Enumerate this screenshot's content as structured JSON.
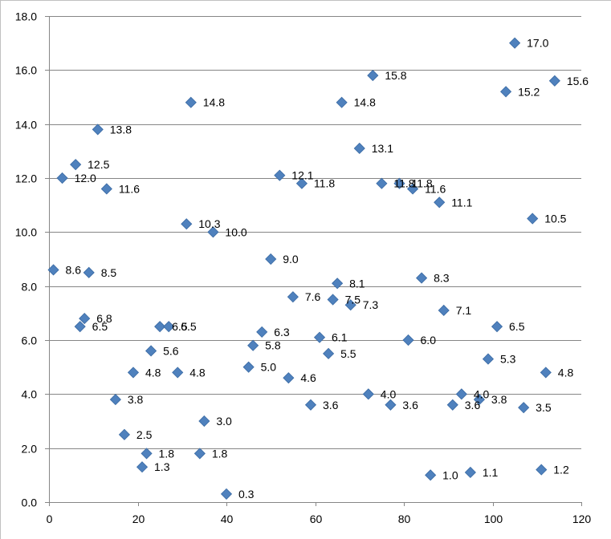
{
  "chart_data": {
    "type": "scatter",
    "title": "",
    "xlabel": "",
    "ylabel": "",
    "xlim": [
      0,
      120
    ],
    "ylim": [
      0,
      18
    ],
    "x_ticks": [
      "0",
      "20",
      "40",
      "60",
      "80",
      "100",
      "120"
    ],
    "y_ticks": [
      "0.0",
      "2.0",
      "4.0",
      "6.0",
      "8.0",
      "10.0",
      "12.0",
      "14.0",
      "16.0",
      "18.0"
    ],
    "grid": "horizontal",
    "legend": "none",
    "marker": "diamond",
    "color": "#4f81bd",
    "points": [
      {
        "x": 1,
        "y": 8.6,
        "label": "8.6"
      },
      {
        "x": 3,
        "y": 12.0,
        "label": "12.0"
      },
      {
        "x": 6,
        "y": 12.5,
        "label": "12.5"
      },
      {
        "x": 7,
        "y": 6.5,
        "label": "6.5"
      },
      {
        "x": 8,
        "y": 6.8,
        "label": "6.8"
      },
      {
        "x": 9,
        "y": 8.5,
        "label": "8.5"
      },
      {
        "x": 11,
        "y": 13.8,
        "label": "13.8"
      },
      {
        "x": 13,
        "y": 11.6,
        "label": "11.6"
      },
      {
        "x": 15,
        "y": 3.8,
        "label": "3.8"
      },
      {
        "x": 17,
        "y": 2.5,
        "label": "2.5"
      },
      {
        "x": 19,
        "y": 4.8,
        "label": "4.8"
      },
      {
        "x": 21,
        "y": 1.3,
        "label": "1.3"
      },
      {
        "x": 22,
        "y": 1.8,
        "label": "1.8"
      },
      {
        "x": 23,
        "y": 5.6,
        "label": "5.6"
      },
      {
        "x": 25,
        "y": 6.5,
        "label": "6.5"
      },
      {
        "x": 27,
        "y": 6.5,
        "label": "6.5"
      },
      {
        "x": 29,
        "y": 4.8,
        "label": "4.8"
      },
      {
        "x": 31,
        "y": 10.3,
        "label": "10.3"
      },
      {
        "x": 32,
        "y": 14.8,
        "label": "14.8"
      },
      {
        "x": 34,
        "y": 1.8,
        "label": "1.8"
      },
      {
        "x": 35,
        "y": 3.0,
        "label": "3.0"
      },
      {
        "x": 37,
        "y": 10.0,
        "label": "10.0"
      },
      {
        "x": 40,
        "y": 0.3,
        "label": "0.3"
      },
      {
        "x": 45,
        "y": 5.0,
        "label": "5.0"
      },
      {
        "x": 46,
        "y": 5.8,
        "label": "5.8"
      },
      {
        "x": 48,
        "y": 6.3,
        "label": "6.3"
      },
      {
        "x": 50,
        "y": 9.0,
        "label": "9.0"
      },
      {
        "x": 52,
        "y": 12.1,
        "label": "12.1"
      },
      {
        "x": 54,
        "y": 4.6,
        "label": "4.6"
      },
      {
        "x": 55,
        "y": 7.6,
        "label": "7.6"
      },
      {
        "x": 57,
        "y": 11.8,
        "label": "11.8"
      },
      {
        "x": 59,
        "y": 3.6,
        "label": "3.6"
      },
      {
        "x": 61,
        "y": 6.1,
        "label": "6.1"
      },
      {
        "x": 63,
        "y": 5.5,
        "label": "5.5"
      },
      {
        "x": 64,
        "y": 7.5,
        "label": "7.5"
      },
      {
        "x": 65,
        "y": 8.1,
        "label": "8.1"
      },
      {
        "x": 66,
        "y": 14.8,
        "label": "14.8"
      },
      {
        "x": 68,
        "y": 7.3,
        "label": "7.3"
      },
      {
        "x": 70,
        "y": 13.1,
        "label": "13.1"
      },
      {
        "x": 72,
        "y": 4.0,
        "label": "4.0"
      },
      {
        "x": 73,
        "y": 15.8,
        "label": "15.8"
      },
      {
        "x": 75,
        "y": 11.8,
        "label": "11.8"
      },
      {
        "x": 77,
        "y": 3.6,
        "label": "3.6"
      },
      {
        "x": 79,
        "y": 11.8,
        "label": "11.8"
      },
      {
        "x": 81,
        "y": 6.0,
        "label": "6.0"
      },
      {
        "x": 82,
        "y": 11.6,
        "label": "11.6"
      },
      {
        "x": 84,
        "y": 8.3,
        "label": "8.3"
      },
      {
        "x": 86,
        "y": 1.0,
        "label": "1.0"
      },
      {
        "x": 88,
        "y": 11.1,
        "label": "11.1"
      },
      {
        "x": 89,
        "y": 7.1,
        "label": "7.1"
      },
      {
        "x": 91,
        "y": 3.6,
        "label": "3.6"
      },
      {
        "x": 93,
        "y": 4.0,
        "label": "4.0"
      },
      {
        "x": 95,
        "y": 1.1,
        "label": "1.1"
      },
      {
        "x": 97,
        "y": 3.8,
        "label": "3.8"
      },
      {
        "x": 99,
        "y": 5.3,
        "label": "5.3"
      },
      {
        "x": 101,
        "y": 6.5,
        "label": "6.5"
      },
      {
        "x": 103,
        "y": 15.2,
        "label": "15.2"
      },
      {
        "x": 105,
        "y": 17.0,
        "label": "17.0"
      },
      {
        "x": 107,
        "y": 3.5,
        "label": "3.5"
      },
      {
        "x": 109,
        "y": 10.5,
        "label": "10.5"
      },
      {
        "x": 111,
        "y": 1.2,
        "label": "1.2"
      },
      {
        "x": 112,
        "y": 4.8,
        "label": "4.8"
      },
      {
        "x": 114,
        "y": 15.6,
        "label": "15.6"
      }
    ]
  }
}
